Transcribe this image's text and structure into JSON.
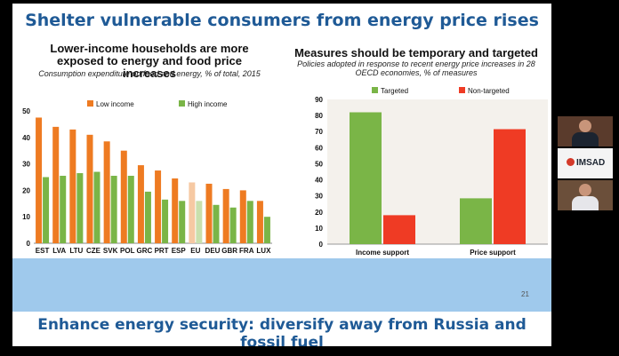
{
  "slide": {
    "title": "Shelter vulnerable consumers from energy price rises",
    "page_number": "21",
    "bottom_title": "Enhance energy security: diversify away from Russia and fossil fuel"
  },
  "left_chart_title": "Lower-income households are more exposed to energy and food price increases",
  "left_chart_subtitle": "Consumption expenditure on food and energy, % of total, 2015",
  "right_chart_title": "Measures should be temporary and targeted",
  "right_chart_subtitle": "Policies adopted in response to recent energy price increases in 28 OECD economies, % of measures",
  "video": {
    "logo_text": "IMSAD"
  },
  "colors": {
    "orange": "#ee7b22",
    "green": "#7ab547",
    "red": "#ef3b24",
    "title_blue": "#1f5a96",
    "band_blue": "#9fc9ec"
  },
  "chart_data": [
    {
      "type": "bar",
      "categories": [
        "EST",
        "LVA",
        "LTU",
        "CZE",
        "SVK",
        "POL",
        "GRC",
        "PRT",
        "ESP",
        "EU",
        "DEU",
        "GBR",
        "FRA",
        "LUX"
      ],
      "series": [
        {
          "name": "Low income",
          "values": [
            47.5,
            44,
            43,
            41,
            38.5,
            35,
            29.5,
            27.5,
            24.5,
            23,
            22.5,
            20.5,
            20,
            16
          ]
        },
        {
          "name": "High income",
          "values": [
            25,
            25.5,
            26.5,
            27,
            25.5,
            25.5,
            19.5,
            16.5,
            16,
            16,
            14.5,
            13.5,
            16,
            10
          ]
        }
      ],
      "highlight_category": "EU",
      "ylim": [
        0,
        50
      ],
      "yticks": [
        0,
        10,
        20,
        30,
        40,
        50
      ],
      "legend": "top"
    },
    {
      "type": "bar",
      "categories": [
        "Income support",
        "Price support"
      ],
      "series": [
        {
          "name": "Targeted",
          "values": [
            82,
            28.5
          ]
        },
        {
          "name": "Non-targeted",
          "values": [
            18,
            71.5
          ]
        }
      ],
      "ylim": [
        0,
        90
      ],
      "yticks": [
        0,
        10,
        20,
        30,
        40,
        50,
        60,
        70,
        80,
        90
      ],
      "legend": "top"
    }
  ]
}
